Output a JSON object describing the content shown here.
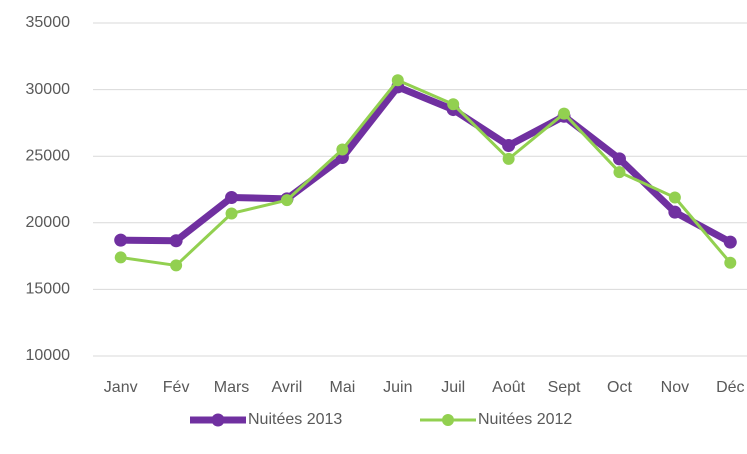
{
  "chart_data": {
    "type": "line",
    "categories": [
      "Janv",
      "Fév",
      "Mars",
      "Avril",
      "Mai",
      "Juin",
      "Juil",
      "Août",
      "Sept",
      "Oct",
      "Nov",
      "Déc"
    ],
    "series": [
      {
        "name": "Nuitées 2013",
        "color": "#7030a0",
        "values": [
          18700,
          18650,
          21900,
          21800,
          24900,
          30200,
          28500,
          25800,
          28000,
          24800,
          20800,
          18550
        ]
      },
      {
        "name": "Nuitées 2012",
        "color": "#92d050",
        "values": [
          17400,
          16800,
          20700,
          21700,
          25500,
          30700,
          28900,
          24800,
          28200,
          23800,
          21900,
          17000
        ]
      }
    ],
    "ylim": [
      10000,
      35000
    ],
    "yticks": [
      10000,
      15000,
      20000,
      25000,
      30000,
      35000
    ],
    "grid": true,
    "legend": "bottom"
  }
}
